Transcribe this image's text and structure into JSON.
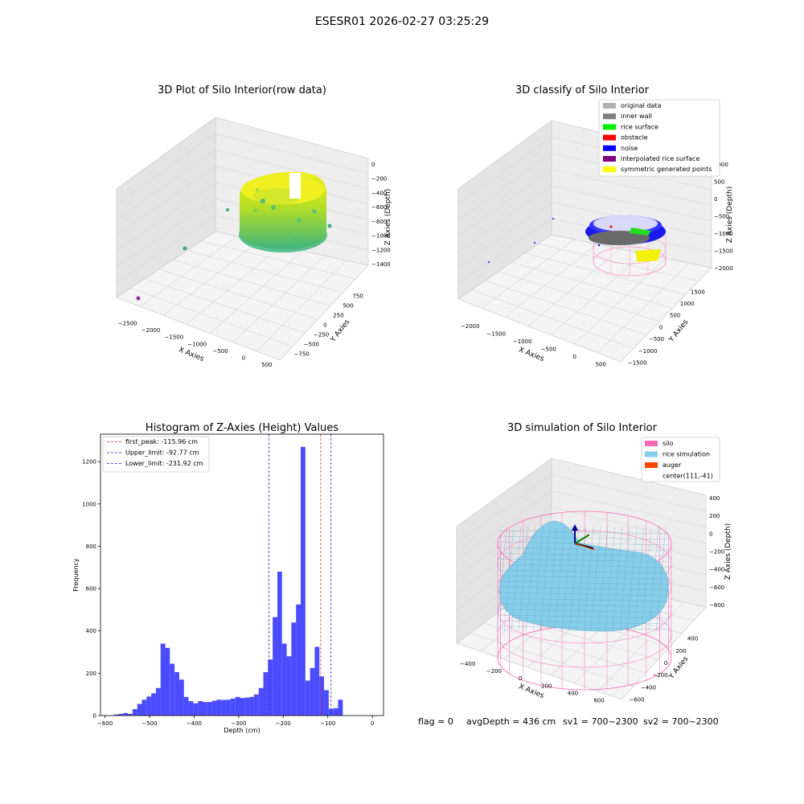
{
  "figure": {
    "suptitle": "ESESR01 2026-02-27 03:25:29",
    "footer": {
      "flag": "flag = 0",
      "avg_depth": "avgDepth = 436 cm",
      "sv1": "sv1 = 700~2300",
      "sv2": "sv2 = 700~2300"
    }
  },
  "colors": {
    "hist_bar": "#4b4bff",
    "first_peak_line": "#e53030",
    "limit_line": "#1f1fd0",
    "silo": "#ff69b4",
    "rice_simulation": "#87ceeb",
    "auger": "#ff4500",
    "point_cloud_low": "#4bbf7a",
    "point_cloud_high": "#e6ef10",
    "pane_grey": "#f2f2f2"
  },
  "chart_data": [
    {
      "type": "scatter",
      "projection": "3d",
      "title": "3D Plot of Silo Interior(row data)",
      "xlabel": "X Axies",
      "ylabel": "Y Axies",
      "zlabel": "Z Axies (Depth)",
      "xticks": [
        "−2500",
        "−2000",
        "−1500",
        "−1000",
        "−500",
        "0",
        "500"
      ],
      "yticks": [
        "−750",
        "−500",
        "−250",
        "0",
        "250",
        "500",
        "750"
      ],
      "zticks": [
        "0",
        "−200",
        "−400",
        "−600",
        "−800",
        "−1000",
        "−1200",
        "−1400"
      ],
      "xlim": [
        -2700,
        700
      ],
      "ylim": [
        -850,
        850
      ],
      "zlim": [
        -1450,
        50
      ],
      "colormap": "viridis (depth)"
    },
    {
      "type": "scatter",
      "projection": "3d",
      "title": "3D classify of Silo Interior",
      "xlabel": "X Axies",
      "ylabel": "Y Axies",
      "zlabel": "Z Axies (Depth)",
      "xticks": [
        "−2000",
        "−1500",
        "−1000",
        "−500",
        "0",
        "500"
      ],
      "yticks": [
        "−1500",
        "−1000",
        "−500",
        "0",
        "500",
        "1000",
        "1500"
      ],
      "zticks": [
        "1000",
        "500",
        "0",
        "−500",
        "−1000",
        "−1500",
        "−2000"
      ],
      "xlim": [
        -2300,
        700
      ],
      "ylim": [
        -1600,
        1600
      ],
      "zlim": [
        -2100,
        1100
      ],
      "legend_position": "top-right",
      "legend": [
        {
          "label": "original data",
          "color": "#b0b0b0"
        },
        {
          "label": "inner wall",
          "color": "#808080"
        },
        {
          "label": "rice surface",
          "color": "#00ee00"
        },
        {
          "label": "obstacle",
          "color": "#ff0000"
        },
        {
          "label": "noise",
          "color": "#0000ff"
        },
        {
          "label": "interpolated rice surface",
          "color": "#800080"
        },
        {
          "label": "symmetric generated points",
          "color": "#ffff00"
        }
      ]
    },
    {
      "type": "bar",
      "title": "Histogram of Z-Axies (Height) Values",
      "xlabel": "Depth (cm)",
      "ylabel": "Frequency",
      "xlim": [
        -610,
        25
      ],
      "ylim": [
        0,
        1330
      ],
      "xticks": [
        -600,
        -500,
        -400,
        -300,
        -200,
        -100,
        0
      ],
      "yticks": [
        0,
        200,
        400,
        600,
        800,
        1000,
        1200
      ],
      "bin_start": -580,
      "bin_width": 10.48,
      "values": [
        5,
        8,
        12,
        8,
        30,
        55,
        75,
        90,
        105,
        130,
        340,
        320,
        245,
        205,
        170,
        88,
        68,
        58,
        68,
        64,
        64,
        70,
        75,
        74,
        75,
        80,
        88,
        83,
        85,
        88,
        100,
        130,
        205,
        265,
        465,
        680,
        340,
        280,
        440,
        525,
        1270,
        165,
        225,
        325,
        185,
        120,
        32,
        35,
        75
      ],
      "lines": [
        {
          "label": "first_peak: -115.96 cm",
          "x": -115.96,
          "style": "dashed",
          "color": "#e53030"
        },
        {
          "label": "Upper_limit: -92.77 cm",
          "x": -92.77,
          "style": "dashed",
          "color": "#1f1fd0"
        },
        {
          "label": "Lower_limit: -231.92 cm",
          "x": -231.92,
          "style": "dashed",
          "color": "#1f1fd0"
        }
      ],
      "legend_position": "top-left"
    },
    {
      "type": "surface",
      "projection": "3d",
      "title": "3D simulation of Silo Interior",
      "xlabel": "X Axies",
      "ylabel": "Y Axies",
      "zlabel": "Z Axies (Depth)",
      "xticks": [
        "−400",
        "−200",
        "0",
        "200",
        "400",
        "600"
      ],
      "yticks": [
        "−600",
        "−400",
        "−200",
        "0",
        "200",
        "400"
      ],
      "zticks": [
        "400",
        "200",
        "0",
        "−200",
        "−400",
        "−600",
        "−800"
      ],
      "xlim": [
        -500,
        700
      ],
      "ylim": [
        -700,
        500
      ],
      "zlim": [
        -900,
        450
      ],
      "legend_position": "top-right",
      "legend": [
        {
          "label": "silo",
          "color": "#ff69b4"
        },
        {
          "label": "rice simulation",
          "color": "#87ceeb"
        },
        {
          "label": "auger",
          "color": "#ff4500"
        },
        {
          "label": "center(111,-41)",
          "color": ""
        }
      ]
    }
  ]
}
